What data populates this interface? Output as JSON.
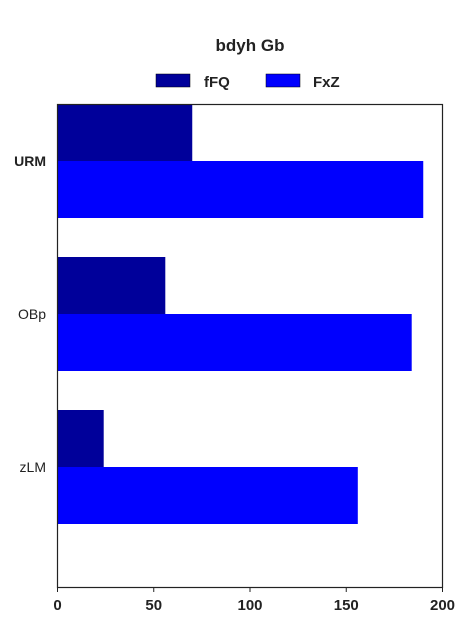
{
  "chart_data": {
    "type": "bar",
    "orientation": "horizontal",
    "title": "bdyh Gb",
    "categories": [
      "URM",
      "OBp",
      "zLM"
    ],
    "bold_categories": [
      "URM"
    ],
    "series": [
      {
        "name": "fFQ",
        "color": "#00009a",
        "values": [
          70,
          56,
          24
        ]
      },
      {
        "name": "FxZ",
        "color": "#0000fe",
        "values": [
          190,
          184,
          156
        ]
      }
    ],
    "xlim": [
      0,
      200
    ],
    "xticks": [
      0,
      50,
      100,
      150,
      200
    ],
    "xlabel": "",
    "ylabel": "",
    "grid": false,
    "legend_position": "top-center"
  }
}
